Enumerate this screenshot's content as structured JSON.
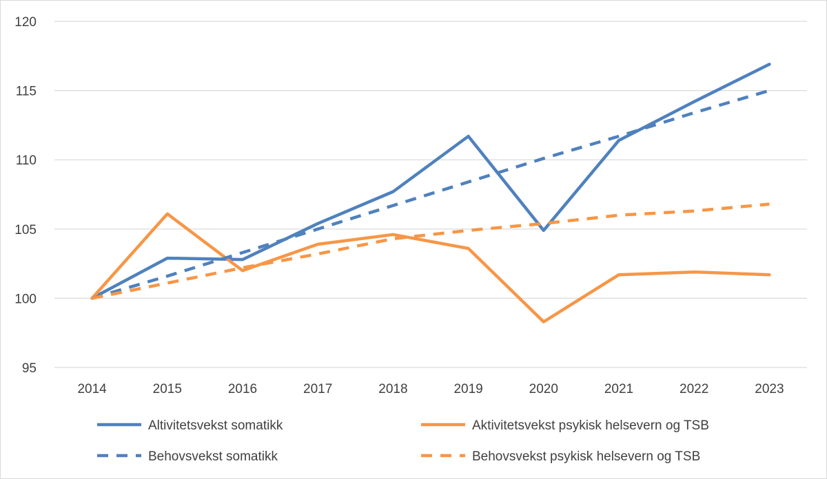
{
  "chart_data": {
    "type": "line",
    "title": "",
    "xlabel": "",
    "ylabel": "",
    "categories": [
      "2014",
      "2015",
      "2016",
      "2017",
      "2018",
      "2019",
      "2020",
      "2021",
      "2022",
      "2023"
    ],
    "ylim": [
      95,
      120
    ],
    "yticks": [
      "95",
      "100",
      "105",
      "110",
      "115",
      "120"
    ],
    "grid": "horizontal",
    "legend_position": "bottom",
    "series": [
      {
        "name": "Altivitetsvekst somatikk",
        "color": "#4F81BD",
        "style": "solid",
        "values": [
          100,
          102.9,
          102.8,
          105.4,
          107.7,
          111.7,
          104.9,
          111.4,
          114.2,
          116.9
        ]
      },
      {
        "name": "Aktivitetsvekst psykisk helsevern og TSB",
        "color": "#F79646",
        "style": "solid",
        "values": [
          100,
          106.1,
          102.0,
          103.9,
          104.6,
          103.6,
          98.3,
          101.7,
          101.9,
          101.7
        ]
      },
      {
        "name": "Behovsvekst somatikk",
        "color": "#4F81BD",
        "style": "dashed",
        "values": [
          100,
          101.6,
          103.3,
          105.0,
          106.7,
          108.4,
          110.1,
          111.7,
          113.4,
          115.0
        ]
      },
      {
        "name": "Behovsvekst psykisk helsevern og TSB",
        "color": "#F79646",
        "style": "dashed",
        "values": [
          100,
          101.1,
          102.2,
          103.2,
          104.3,
          104.9,
          105.4,
          106.0,
          106.3,
          106.8
        ]
      }
    ]
  }
}
